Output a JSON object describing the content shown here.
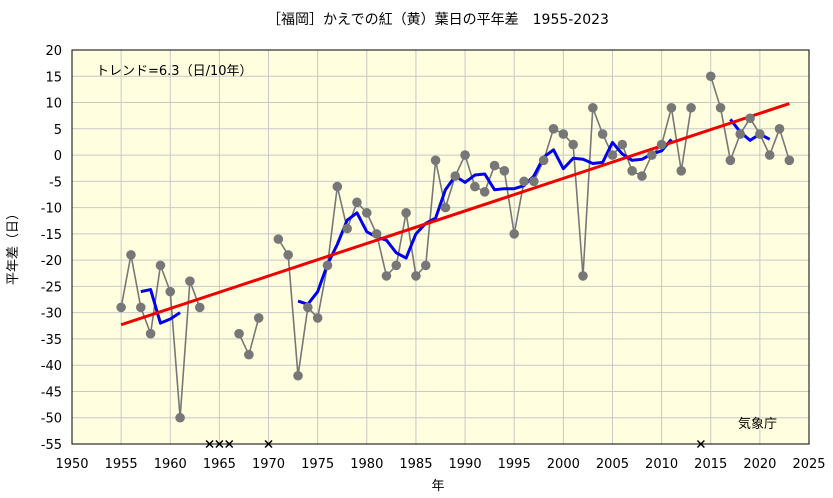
{
  "chart_data": {
    "type": "line",
    "title": "［福岡］かえでの紅（黄）葉日の平年差　1955-2023",
    "xlabel": "年",
    "ylabel": "平年差（日）",
    "trend_label": "トレンド=6.3（日/10年）",
    "source_label": "気象庁",
    "xlim": [
      1950,
      2025
    ],
    "ylim": [
      -55,
      20
    ],
    "xticks": [
      1950,
      1955,
      1960,
      1965,
      1970,
      1975,
      1980,
      1985,
      1990,
      1995,
      2000,
      2005,
      2010,
      2015,
      2020,
      2025
    ],
    "yticks": [
      20,
      15,
      10,
      5,
      0,
      -5,
      -10,
      -15,
      -20,
      -25,
      -30,
      -35,
      -40,
      -45,
      -50,
      -55
    ],
    "grid": true,
    "colors": {
      "background": "#ffffe0",
      "annual": "#777777",
      "running_mean": "#0000ee",
      "trend": "#ee0000",
      "missing": "#000000"
    },
    "series": [
      {
        "role": "annual",
        "segments": [
          [
            [
              1955,
              -29
            ],
            [
              1956,
              -19
            ],
            [
              1957,
              -29
            ],
            [
              1958,
              -34
            ],
            [
              1959,
              -21
            ],
            [
              1960,
              -26
            ],
            [
              1961,
              -50
            ],
            [
              1962,
              -24
            ],
            [
              1963,
              -29
            ]
          ],
          [
            [
              1967,
              -34
            ],
            [
              1968,
              -38
            ],
            [
              1969,
              -31
            ]
          ],
          [
            [
              1971,
              -16
            ],
            [
              1972,
              -19
            ],
            [
              1973,
              -42
            ],
            [
              1974,
              -29
            ],
            [
              1975,
              -31
            ],
            [
              1976,
              -21
            ],
            [
              1977,
              -6
            ],
            [
              1978,
              -14
            ],
            [
              1979,
              -9
            ],
            [
              1980,
              -11
            ],
            [
              1981,
              -15
            ],
            [
              1982,
              -23
            ],
            [
              1983,
              -21
            ],
            [
              1984,
              -11
            ],
            [
              1985,
              -23
            ],
            [
              1986,
              -21
            ],
            [
              1987,
              -1
            ],
            [
              1988,
              -10
            ],
            [
              1989,
              -4
            ],
            [
              1990,
              0
            ],
            [
              1991,
              -6
            ],
            [
              1992,
              -7
            ],
            [
              1993,
              -2
            ],
            [
              1994,
              -3
            ],
            [
              1995,
              -15
            ],
            [
              1996,
              -5
            ],
            [
              1997,
              -5
            ],
            [
              1998,
              -1
            ],
            [
              1999,
              5
            ],
            [
              2000,
              4
            ],
            [
              2001,
              2
            ],
            [
              2002,
              -23
            ],
            [
              2003,
              9
            ],
            [
              2004,
              4
            ],
            [
              2005,
              0
            ],
            [
              2006,
              2
            ],
            [
              2007,
              -3
            ],
            [
              2008,
              -4
            ],
            [
              2009,
              0
            ],
            [
              2010,
              2
            ],
            [
              2011,
              9
            ],
            [
              2012,
              -3
            ],
            [
              2013,
              9
            ]
          ],
          [
            [
              2015,
              15
            ],
            [
              2016,
              9
            ],
            [
              2017,
              -1
            ],
            [
              2018,
              4
            ],
            [
              2019,
              7
            ],
            [
              2020,
              4
            ],
            [
              2021,
              0
            ],
            [
              2022,
              5
            ],
            [
              2023,
              -1
            ]
          ]
        ]
      },
      {
        "role": "running_mean",
        "segments": [
          [
            [
              1957,
              -26
            ],
            [
              1958,
              -25.6
            ],
            [
              1959,
              -32
            ],
            [
              1960,
              -31.2
            ],
            [
              1961,
              -30
            ]
          ],
          [
            [
              1973,
              -27.8
            ],
            [
              1974,
              -28.4
            ],
            [
              1975,
              -26
            ],
            [
              1976,
              -20.8
            ],
            [
              1977,
              -17
            ],
            [
              1978,
              -12.4
            ],
            [
              1979,
              -11
            ],
            [
              1980,
              -14.6
            ],
            [
              1981,
              -15.6
            ],
            [
              1982,
              -16.2
            ],
            [
              1983,
              -18.6
            ],
            [
              1984,
              -19.6
            ],
            [
              1985,
              -15
            ],
            [
              1986,
              -13
            ],
            [
              1987,
              -12
            ],
            [
              1988,
              -6.6
            ],
            [
              1989,
              -4
            ],
            [
              1990,
              -5.2
            ],
            [
              1991,
              -3.8
            ],
            [
              1992,
              -3.6
            ],
            [
              1993,
              -6.6
            ],
            [
              1994,
              -6.4
            ],
            [
              1995,
              -6.4
            ],
            [
              1996,
              -5.8
            ],
            [
              1997,
              -4
            ],
            [
              1998,
              -0.4
            ],
            [
              1999,
              1
            ],
            [
              2000,
              -2.6
            ],
            [
              2001,
              -0.6
            ],
            [
              2002,
              -0.8
            ],
            [
              2003,
              -1.6
            ],
            [
              2004,
              -1.4
            ],
            [
              2005,
              2.4
            ],
            [
              2006,
              0.2
            ],
            [
              2007,
              -1
            ],
            [
              2008,
              -0.8
            ],
            [
              2009,
              0.2
            ],
            [
              2010,
              0.8
            ],
            [
              2011,
              3
            ]
          ],
          [
            [
              2017,
              6.8
            ],
            [
              2018,
              4.4
            ],
            [
              2019,
              2.8
            ],
            [
              2020,
              4
            ],
            [
              2021,
              3
            ]
          ]
        ]
      },
      {
        "role": "trend",
        "points": [
          [
            1955,
            -32.3
          ],
          [
            2023,
            9.8
          ]
        ]
      }
    ],
    "missing_years": [
      1964,
      1965,
      1966,
      1970,
      2014
    ]
  }
}
